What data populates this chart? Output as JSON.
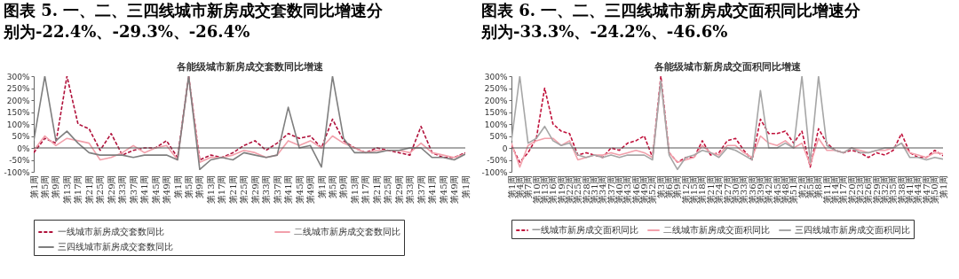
{
  "chart_data": [
    {
      "type": "line",
      "title": "图表 5. 一、二、三四线城市新房成交套数同比增速分别为-22.4%、-29.3%、-26.4%",
      "subtitle": "各能级城市新房成交套数同比增速",
      "categories": [
        "第1周",
        "第5周",
        "第9周",
        "第13周",
        "第17周",
        "第21周",
        "第25周",
        "第29周",
        "第33周",
        "第37周",
        "第41周",
        "第45周",
        "第49周",
        "第1周",
        "第5周",
        "第9周",
        "第13周",
        "第17周",
        "第21周",
        "第25周",
        "第29周",
        "第33周",
        "第37周",
        "第41周",
        "第45周",
        "第49周",
        "第1周",
        "第5周",
        "第9周",
        "第13周",
        "第17周",
        "第21周",
        "第25周",
        "第29周",
        "第33周",
        "第37周",
        "第41周",
        "第45周",
        "第49周",
        "第1周"
      ],
      "series": [
        {
          "name": "一线城市新房成交套数同比",
          "color": "#b0103a",
          "line_style": "dashed",
          "values": [
            -20,
            40,
            20,
            300,
            100,
            80,
            -10,
            60,
            -30,
            -10,
            0,
            0,
            30,
            -40,
            300,
            -50,
            -30,
            -40,
            -20,
            10,
            30,
            -10,
            20,
            60,
            40,
            50,
            0,
            120,
            30,
            0,
            -20,
            0,
            -10,
            -20,
            -30,
            90,
            -20,
            -40,
            -40,
            -20
          ]
        },
        {
          "name": "二线城市新房成交套数同比",
          "color": "#f2a0ab",
          "line_style": "solid",
          "values": [
            -10,
            50,
            10,
            40,
            30,
            20,
            -50,
            -40,
            -20,
            10,
            -20,
            0,
            10,
            -50,
            300,
            -60,
            -40,
            -40,
            -30,
            -10,
            -20,
            -40,
            -30,
            30,
            10,
            30,
            0,
            50,
            20,
            0,
            -20,
            -10,
            -10,
            -10,
            -20,
            20,
            -20,
            -30,
            -40,
            -25
          ]
        },
        {
          "name": "三四线城市新房成交套数同比",
          "color": "#7f7f7f",
          "line_style": "solid",
          "values": [
            30,
            300,
            30,
            70,
            20,
            -20,
            -30,
            -30,
            -30,
            -40,
            -30,
            -30,
            -30,
            -50,
            300,
            -90,
            -50,
            -40,
            -50,
            -20,
            -30,
            -40,
            -30,
            170,
            0,
            10,
            -80,
            300,
            40,
            -20,
            -20,
            -20,
            -10,
            -10,
            0,
            0,
            -40,
            -40,
            -50,
            -26
          ]
        }
      ],
      "ylim": [
        -100,
        300
      ],
      "yticks": [
        {
          "value": -100,
          "label": "-100%"
        },
        {
          "value": -50,
          "label": "-50%"
        },
        {
          "value": 0,
          "label": "0%"
        },
        {
          "value": 50,
          "label": "50%"
        },
        {
          "value": 100,
          "label": "100%"
        },
        {
          "value": 150,
          "label": "150%"
        },
        {
          "value": 200,
          "label": "200%"
        },
        {
          "value": 250,
          "label": "250%"
        },
        {
          "value": 300,
          "label": "300%"
        }
      ],
      "ref_lines": [
        {
          "axis": "y",
          "value": 0
        }
      ],
      "grid": false,
      "legend": "bottom"
    },
    {
      "type": "line",
      "title": "图表 6. 一、二、三四线城市新房成交面积同比增速分别为-33.3%、-24.2%、-46.6%",
      "subtitle": "各能级城市新房成交面积同比增速",
      "categories": [
        "第1周",
        "第4周",
        "第7周",
        "第10周",
        "第13周",
        "第16周",
        "第19周",
        "第22周",
        "第25周",
        "第28周",
        "第31周",
        "第34周",
        "第37周",
        "第40周",
        "第43周",
        "第46周",
        "第49周",
        "第52周",
        "第3周",
        "第6周",
        "第9周",
        "第12周",
        "第15周",
        "第18周",
        "第21周",
        "第24周",
        "第27周",
        "第30周",
        "第33周",
        "第36周",
        "第39周",
        "第42周",
        "第45周",
        "第48周",
        "第51周",
        "第2周",
        "第5周",
        "第8周",
        "第11周",
        "第14周",
        "第17周",
        "第20周",
        "第23周",
        "第26周",
        "第29周",
        "第32周",
        "第35周",
        "第38周",
        "第41周",
        "第44周",
        "第47周",
        "第50周",
        "第1周"
      ],
      "series": [
        {
          "name": "一线城市新房成交面积同比",
          "color": "#c0103a",
          "line_style": "dashed",
          "values": [
            10,
            -60,
            -20,
            40,
            250,
            100,
            70,
            60,
            -30,
            -20,
            -30,
            -40,
            0,
            -10,
            20,
            30,
            50,
            -40,
            300,
            -20,
            -60,
            -40,
            -40,
            30,
            -30,
            -20,
            30,
            40,
            -10,
            -50,
            120,
            60,
            60,
            70,
            20,
            70,
            -80,
            80,
            20,
            -10,
            -20,
            -10,
            -20,
            -40,
            -20,
            -30,
            -10,
            60,
            -20,
            -40,
            -40,
            -10,
            -33
          ]
        },
        {
          "name": "二线城市新房成交面积同比",
          "color": "#f2a0ab",
          "line_style": "solid",
          "values": [
            20,
            -80,
            10,
            30,
            40,
            40,
            10,
            30,
            -50,
            -40,
            -30,
            -30,
            -20,
            -30,
            -20,
            -10,
            -20,
            -40,
            280,
            -20,
            -60,
            -50,
            -40,
            10,
            -20,
            -30,
            10,
            10,
            -20,
            -40,
            50,
            20,
            10,
            30,
            0,
            20,
            -70,
            40,
            -10,
            -10,
            -20,
            0,
            -10,
            -20,
            -10,
            -10,
            0,
            20,
            -20,
            -30,
            -40,
            -20,
            -24
          ]
        },
        {
          "name": "三四线城市新房成交面积同比",
          "color": "#a6a6a6",
          "line_style": "solid",
          "values": [
            30,
            300,
            20,
            40,
            90,
            30,
            10,
            20,
            -30,
            -40,
            -30,
            -40,
            -30,
            -40,
            -30,
            -30,
            -30,
            -50,
            280,
            -30,
            -90,
            -40,
            -30,
            -10,
            -20,
            -40,
            0,
            -10,
            -30,
            -50,
            240,
            0,
            0,
            20,
            0,
            300,
            -60,
            300,
            10,
            -10,
            -20,
            0,
            -20,
            -20,
            -10,
            0,
            0,
            20,
            -40,
            -40,
            -50,
            -40,
            -47
          ]
        }
      ],
      "ylim": [
        -100,
        300
      ],
      "yticks": [
        {
          "value": -100,
          "label": "-100%"
        },
        {
          "value": -50,
          "label": "-50%"
        },
        {
          "value": 0,
          "label": "0"
        },
        {
          "value": 50,
          "label": "50%"
        },
        {
          "value": 100,
          "label": "100%"
        },
        {
          "value": 150,
          "label": "150%"
        },
        {
          "value": 200,
          "label": "200%"
        },
        {
          "value": 250,
          "label": "250%"
        },
        {
          "value": 300,
          "label": "300%"
        }
      ],
      "ref_lines": [
        {
          "axis": "y",
          "value": 0
        }
      ],
      "grid": false,
      "legend": "bottom"
    }
  ]
}
